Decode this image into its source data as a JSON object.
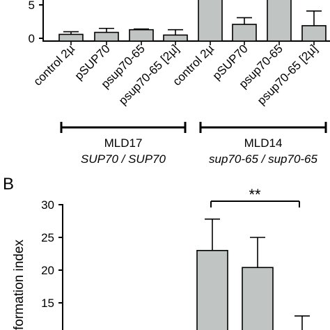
{
  "chart_data": [
    {
      "type": "bar",
      "categories": [
        "control 2µ",
        "pSUP70",
        "psup70-65",
        "psup70-65 [2µ]",
        "control 2µ",
        "pSUP70",
        "psup70-65",
        "psup70-65 [2µ]"
      ],
      "values": [
        1.0,
        1.3,
        1.7,
        0.9,
        6.5,
        2.5,
        6.5,
        2.3
      ],
      "errors": [
        0.4,
        0.6,
        0.1,
        0.8,
        0,
        1.0,
        0,
        2.2
      ],
      "ytick_labels": [
        "0",
        "5"
      ],
      "ylim": [
        0,
        6.4
      ],
      "bar_color": "#c0c4c3",
      "group_labels": [
        {
          "name": "MLD17",
          "genotype": "SUP70 / SUP70"
        },
        {
          "name": "MLD14",
          "genotype": "sup70-65 / sup70-65"
        }
      ]
    },
    {
      "type": "bar",
      "panel_label": "B",
      "ylabel": "formation index",
      "ytick_labels": [
        "15",
        "20",
        "25",
        "30"
      ],
      "ylim": [
        10,
        30
      ],
      "values": [
        23.0,
        20.4,
        8.0
      ],
      "errors": [
        4.8,
        4.6,
        5.0
      ],
      "significance": "**",
      "bar_color": "#c0c4c3"
    }
  ]
}
